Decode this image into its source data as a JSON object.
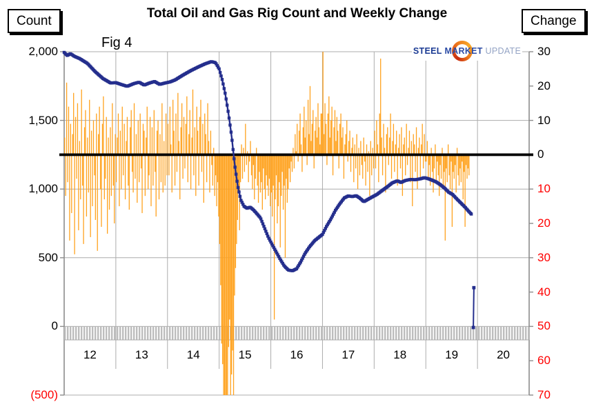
{
  "fig_label": "Fig 4",
  "logo": {
    "steel": "STEEL",
    "market": "MARKET",
    "update": "UPDATE"
  },
  "colors": {
    "line": "#242E8D",
    "bar": "#FFA21E",
    "grid": "#ACACAC",
    "axis": "#8C8C8C",
    "band": "#BDBDBD",
    "band_edge": "#ABABAB",
    "zero_line": "#000000",
    "negative_label": "#FF0000"
  },
  "chart_data": {
    "type": "line+bar",
    "title": "Total Oil and Gas Rig Count and Weekly Change",
    "legend_position": "none",
    "grid": true,
    "left_axis": {
      "label": "Count",
      "range": [
        -500,
        2000
      ],
      "values": [
        2000,
        1500,
        1000,
        500,
        0,
        -500
      ],
      "ticks": [
        "2,000",
        "1,500",
        "1,000",
        "500",
        "0",
        "(500)"
      ]
    },
    "right_axis": {
      "label": "Change",
      "range": [
        -70,
        30
      ],
      "values": [
        30,
        20,
        10,
        0,
        -10,
        -20,
        -30,
        -40,
        -50,
        -60,
        -70
      ],
      "ticks": [
        "30",
        "20",
        "10",
        "0",
        "10",
        "20",
        "30",
        "40",
        "50",
        "60",
        "70"
      ]
    },
    "x_axis": {
      "labels": [
        "12",
        "13",
        "14",
        "15",
        "16",
        "17",
        "18",
        "19",
        "20"
      ],
      "range": [
        12,
        21
      ]
    },
    "rig_count_line": {
      "name": "Total oil and gas rig count",
      "points": [
        [
          12.0,
          1995
        ],
        [
          12.06,
          1972
        ],
        [
          12.12,
          1986
        ],
        [
          12.2,
          1966
        ],
        [
          12.3,
          1950
        ],
        [
          12.45,
          1915
        ],
        [
          12.6,
          1855
        ],
        [
          12.75,
          1805
        ],
        [
          12.9,
          1772
        ],
        [
          13.0,
          1775
        ],
        [
          13.1,
          1762
        ],
        [
          13.22,
          1748
        ],
        [
          13.35,
          1768
        ],
        [
          13.45,
          1778
        ],
        [
          13.55,
          1757
        ],
        [
          13.65,
          1772
        ],
        [
          13.75,
          1783
        ],
        [
          13.85,
          1762
        ],
        [
          13.95,
          1772
        ],
        [
          14.05,
          1780
        ],
        [
          14.15,
          1795
        ],
        [
          14.3,
          1830
        ],
        [
          14.45,
          1862
        ],
        [
          14.6,
          1890
        ],
        [
          14.73,
          1912
        ],
        [
          14.85,
          1928
        ],
        [
          14.93,
          1920
        ],
        [
          15.0,
          1875
        ],
        [
          15.06,
          1795
        ],
        [
          15.12,
          1690
        ],
        [
          15.18,
          1550
        ],
        [
          15.24,
          1390
        ],
        [
          15.3,
          1180
        ],
        [
          15.36,
          1020
        ],
        [
          15.42,
          920
        ],
        [
          15.48,
          875
        ],
        [
          15.54,
          860
        ],
        [
          15.6,
          868
        ],
        [
          15.66,
          850
        ],
        [
          15.72,
          825
        ],
        [
          15.8,
          790
        ],
        [
          15.88,
          715
        ],
        [
          15.95,
          650
        ],
        [
          16.02,
          600
        ],
        [
          16.1,
          545
        ],
        [
          16.18,
          490
        ],
        [
          16.26,
          440
        ],
        [
          16.34,
          410
        ],
        [
          16.42,
          405
        ],
        [
          16.5,
          420
        ],
        [
          16.58,
          470
        ],
        [
          16.66,
          530
        ],
        [
          16.75,
          580
        ],
        [
          16.85,
          625
        ],
        [
          16.95,
          655
        ],
        [
          17.0,
          670
        ],
        [
          17.08,
          730
        ],
        [
          17.16,
          780
        ],
        [
          17.25,
          845
        ],
        [
          17.33,
          890
        ],
        [
          17.42,
          935
        ],
        [
          17.5,
          950
        ],
        [
          17.58,
          945
        ],
        [
          17.65,
          952
        ],
        [
          17.72,
          935
        ],
        [
          17.8,
          908
        ],
        [
          17.88,
          925
        ],
        [
          17.95,
          940
        ],
        [
          18.05,
          960
        ],
        [
          18.15,
          988
        ],
        [
          18.25,
          1015
        ],
        [
          18.35,
          1045
        ],
        [
          18.45,
          1060
        ],
        [
          18.52,
          1048
        ],
        [
          18.6,
          1062
        ],
        [
          18.7,
          1070
        ],
        [
          18.8,
          1068
        ],
        [
          18.9,
          1075
        ],
        [
          18.97,
          1083
        ],
        [
          19.05,
          1075
        ],
        [
          19.12,
          1065
        ],
        [
          19.2,
          1052
        ],
        [
          19.28,
          1032
        ],
        [
          19.36,
          1008
        ],
        [
          19.44,
          978
        ],
        [
          19.52,
          960
        ],
        [
          19.6,
          928
        ],
        [
          19.68,
          898
        ],
        [
          19.76,
          868
        ],
        [
          19.82,
          842
        ],
        [
          19.88,
          818
        ]
      ]
    },
    "artifact_points": [
      [
        19.92,
        -8
      ],
      [
        19.93,
        282
      ]
    ],
    "weekly_change_bars": {
      "name": "Weekly change",
      "start_year": 12,
      "weeks_per_year": 52,
      "values_by_year": [
        [
          5,
          -12,
          21,
          -8,
          14,
          -25,
          9,
          -17,
          6,
          18,
          -29,
          11,
          -7,
          15,
          -22,
          4,
          -13,
          19,
          -9,
          -26,
          8,
          13,
          -18,
          5,
          -11,
          16,
          -24,
          7,
          -15,
          10,
          -6,
          -19,
          12,
          -28,
          6,
          14,
          -10,
          -21,
          9,
          17,
          -13,
          -7,
          11,
          -23,
          5,
          -16,
          8,
          -12,
          15,
          -9,
          -20,
          6
        ],
        [
          -8,
          5,
          12,
          -15,
          7,
          -10,
          14,
          -6,
          9,
          -13,
          4,
          11,
          -9,
          -16,
          8,
          13,
          -5,
          -11,
          15,
          -7,
          6,
          -14,
          10,
          -8,
          12,
          -4,
          -17,
          9,
          7,
          -12,
          5,
          14,
          -10,
          -6,
          11,
          -15,
          8,
          -9,
          13,
          -5,
          -18,
          7,
          10,
          -13,
          6,
          -8,
          15,
          -11,
          4,
          -9,
          12,
          -6
        ],
        [
          9,
          -6,
          14,
          3,
          -11,
          16,
          7,
          -9,
          12,
          -5,
          18,
          4,
          -13,
          8,
          15,
          -7,
          11,
          -4,
          9,
          17,
          -8,
          6,
          13,
          -10,
          5,
          19,
          -6,
          8,
          -12,
          14,
          7,
          -9,
          11,
          16,
          -5,
          9,
          -14,
          12,
          6,
          -8,
          15,
          4,
          -11,
          7,
          -3,
          -9,
          2,
          -12,
          -6,
          -15,
          -8,
          -18
        ],
        [
          -26,
          -38,
          -55,
          -61,
          -70,
          -83,
          -90,
          -75,
          -70,
          -56,
          -48,
          -70,
          -64,
          -57,
          -70,
          -41,
          -33,
          -26,
          -19,
          -11,
          -22,
          -8,
          3,
          -7,
          2,
          -5,
          9,
          -3,
          1,
          -8,
          -2,
          4,
          -6,
          -10,
          -3,
          -13,
          -7,
          2,
          -9,
          -14,
          -5,
          -11,
          -8,
          -16,
          -4,
          -10,
          -13,
          -6,
          -9,
          -12,
          -7,
          -15
        ],
        [
          -11,
          -18,
          -9,
          -48,
          -13,
          -6,
          -20,
          -15,
          -8,
          -27,
          -12,
          -5,
          -16,
          -9,
          -30,
          -7,
          -14,
          -10,
          -4,
          -8,
          -2,
          -5,
          2,
          -4,
          6,
          1,
          9,
          -2,
          7,
          12,
          3,
          -5,
          8,
          14,
          5,
          10,
          -3,
          16,
          6,
          20,
          4,
          9,
          13,
          -4,
          7,
          11,
          5,
          15,
          8,
          3,
          12,
          12
        ],
        [
          30,
          6,
          15,
          9,
          -3,
          12,
          17,
          5,
          10,
          14,
          -6,
          8,
          13,
          4,
          11,
          7,
          -4,
          9,
          12,
          5,
          8,
          -7,
          3,
          6,
          10,
          -2,
          4,
          7,
          -5,
          2,
          5,
          -8,
          3,
          -4,
          6,
          -10,
          2,
          -6,
          4,
          -3,
          -7,
          5,
          -2,
          -9,
          3,
          -5,
          1,
          -12,
          4,
          -6,
          2,
          -4
        ],
        [
          7,
          -4,
          10,
          3,
          -8,
          12,
          28,
          5,
          -6,
          9,
          2,
          -11,
          6,
          8,
          -3,
          5,
          12,
          -7,
          4,
          9,
          -5,
          3,
          7,
          -9,
          2,
          6,
          -4,
          8,
          -12,
          3,
          5,
          -6,
          9,
          -3,
          2,
          7,
          -8,
          4,
          -15,
          6,
          3,
          -5,
          8,
          -10,
          2,
          5,
          -7,
          3,
          9,
          -4,
          6,
          -2
        ],
        [
          -2,
          4,
          -7,
          -3,
          -9,
          2,
          -5,
          -11,
          -4,
          3,
          -8,
          -2,
          -6,
          -12,
          -3,
          -7,
          2,
          -9,
          -5,
          -25,
          -4,
          -8,
          3,
          -6,
          -10,
          -2,
          -21,
          -5,
          -7,
          -3,
          -11,
          2,
          -6,
          -9,
          -4,
          -8,
          -2,
          -13,
          -5,
          -21,
          -3,
          -7,
          -4,
          -6
        ]
      ]
    }
  }
}
